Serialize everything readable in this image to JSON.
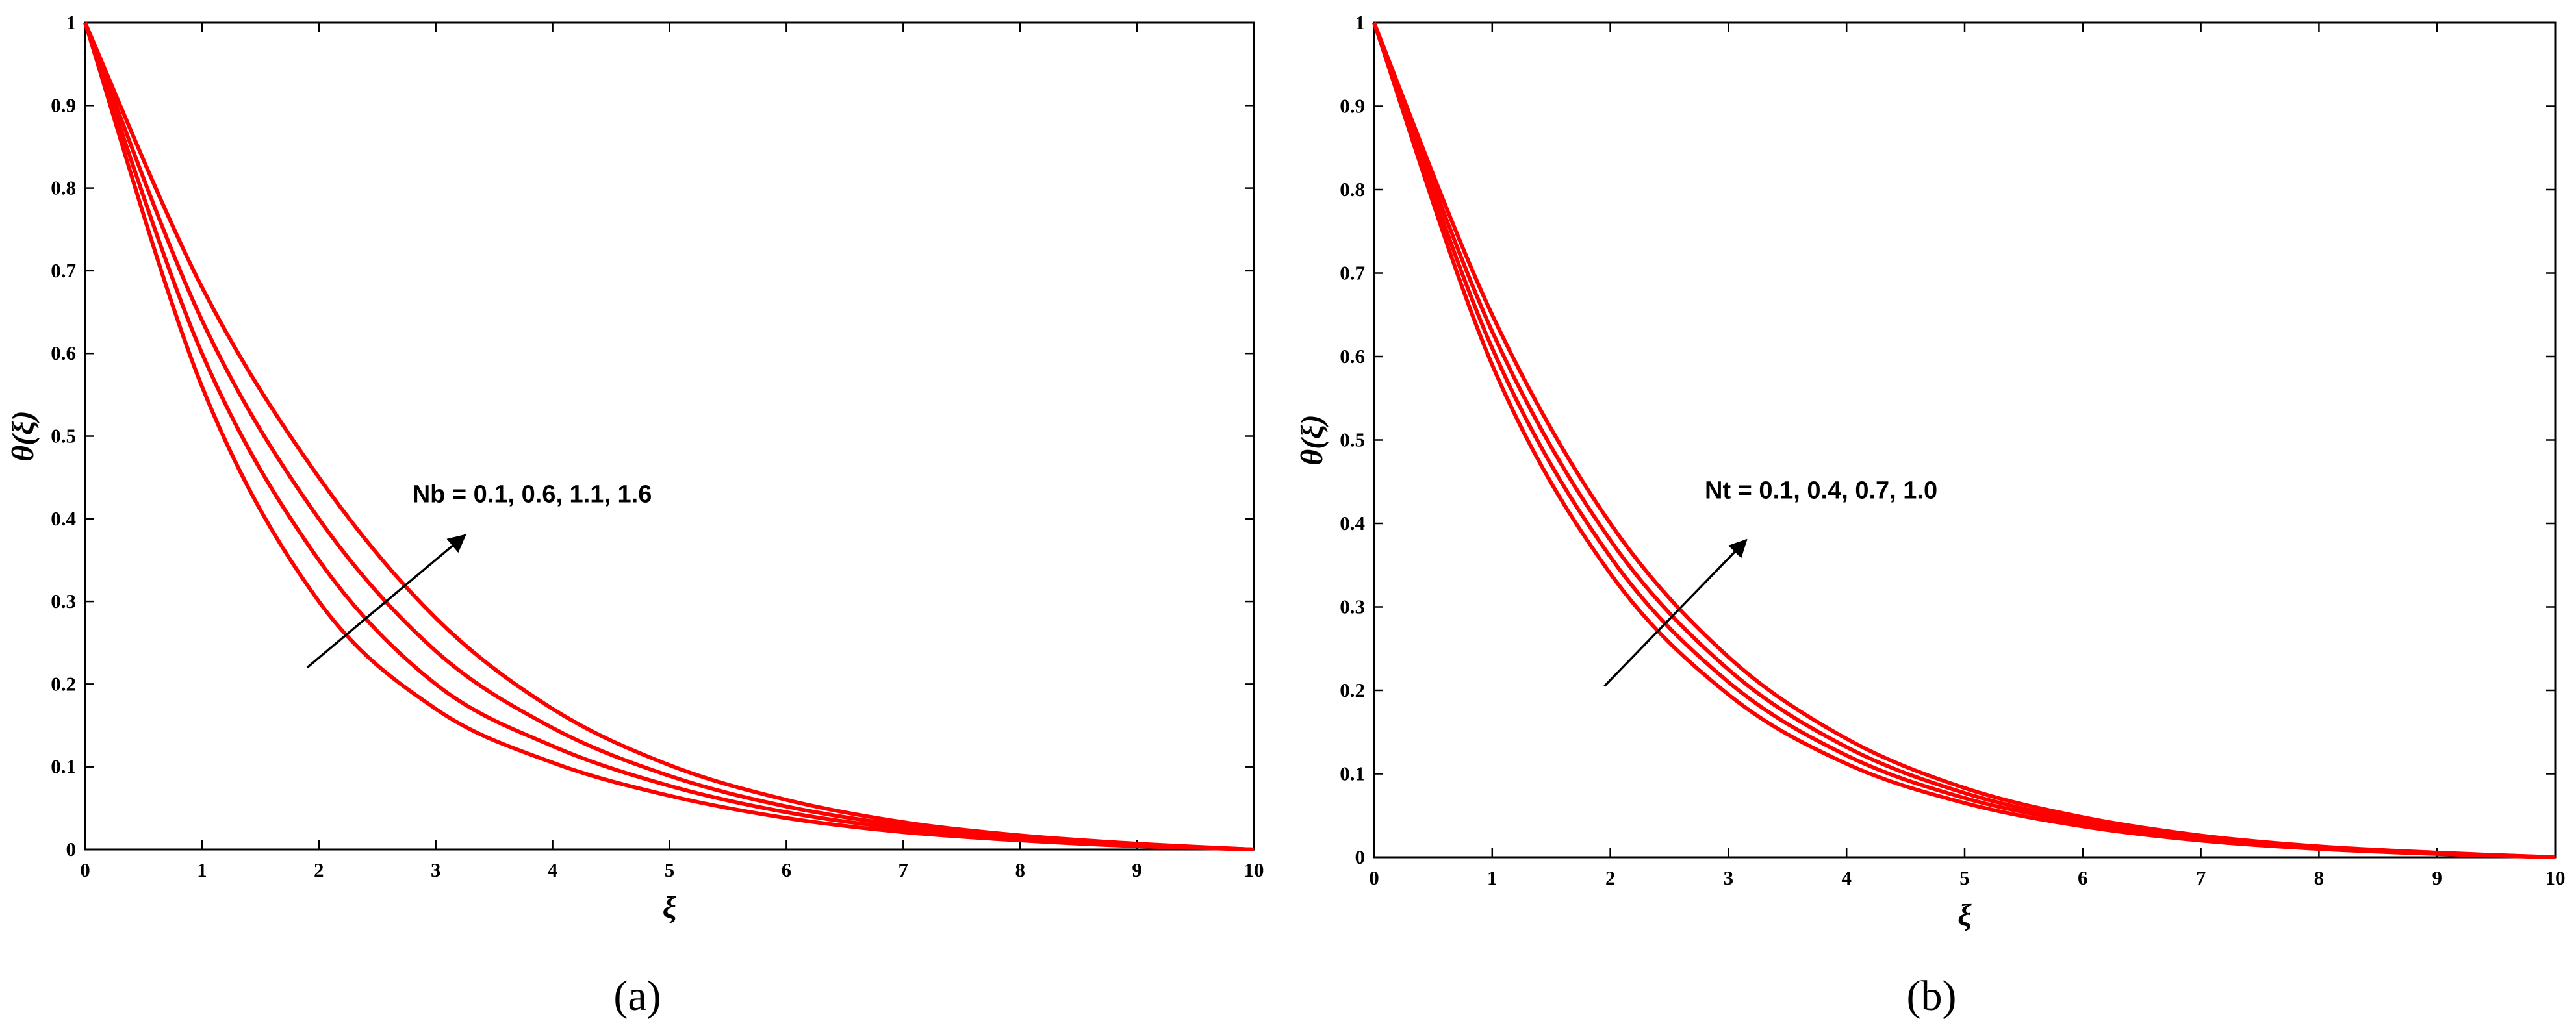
{
  "chart_data": [
    {
      "type": "line",
      "panel_label": "(a)",
      "xlabel": "ξ",
      "ylabel": "θ(ξ)",
      "annotation": "Nb = 0.1, 0.6, 1.1, 1.6",
      "x": [
        0,
        1,
        2,
        3,
        4,
        5,
        6,
        7,
        8,
        9,
        10
      ],
      "series": [
        {
          "color": "#ff0000",
          "values": [
            1,
            0.56,
            0.3,
            0.17,
            0.105,
            0.065,
            0.038,
            0.021,
            0.011,
            0.004,
            0
          ]
        },
        {
          "color": "#ff0000",
          "values": [
            1,
            0.6,
            0.35,
            0.2,
            0.125,
            0.077,
            0.045,
            0.025,
            0.013,
            0.005,
            0
          ]
        },
        {
          "color": "#ff0000",
          "values": [
            1,
            0.64,
            0.4,
            0.24,
            0.147,
            0.089,
            0.052,
            0.029,
            0.015,
            0.006,
            0
          ]
        },
        {
          "color": "#ff0000",
          "values": [
            1,
            0.68,
            0.45,
            0.28,
            0.17,
            0.102,
            0.06,
            0.033,
            0.017,
            0.007,
            0
          ]
        }
      ],
      "xlim": [
        0,
        10
      ],
      "ylim": [
        0,
        1
      ],
      "xticks": [
        0,
        1,
        2,
        3,
        4,
        5,
        6,
        7,
        8,
        9,
        10
      ],
      "yticks": [
        0,
        0.1,
        0.2,
        0.3,
        0.4,
        0.5,
        0.6,
        0.7,
        0.8,
        0.9,
        1
      ]
    },
    {
      "type": "line",
      "panel_label": "(b)",
      "xlabel": "ξ",
      "ylabel": "θ(ξ)",
      "annotation": "Nt = 0.1, 0.4, 0.7, 1.0",
      "x": [
        0,
        1,
        2,
        3,
        4,
        5,
        6,
        7,
        8,
        9,
        10
      ],
      "series": [
        {
          "color": "#ff0000",
          "values": [
            1,
            0.59,
            0.34,
            0.195,
            0.112,
            0.065,
            0.037,
            0.02,
            0.01,
            0.004,
            0
          ]
        },
        {
          "color": "#ff0000",
          "values": [
            1,
            0.61,
            0.36,
            0.21,
            0.122,
            0.071,
            0.041,
            0.022,
            0.011,
            0.0045,
            0
          ]
        },
        {
          "color": "#ff0000",
          "values": [
            1,
            0.63,
            0.38,
            0.225,
            0.132,
            0.077,
            0.044,
            0.024,
            0.012,
            0.005,
            0
          ]
        },
        {
          "color": "#ff0000",
          "values": [
            1,
            0.65,
            0.4,
            0.24,
            0.142,
            0.083,
            0.048,
            0.026,
            0.013,
            0.0055,
            0
          ]
        }
      ],
      "xlim": [
        0,
        10
      ],
      "ylim": [
        0,
        1
      ],
      "xticks": [
        0,
        1,
        2,
        3,
        4,
        5,
        6,
        7,
        8,
        9,
        10
      ],
      "yticks": [
        0,
        0.1,
        0.2,
        0.3,
        0.4,
        0.5,
        0.6,
        0.7,
        0.8,
        0.9,
        1
      ]
    }
  ]
}
